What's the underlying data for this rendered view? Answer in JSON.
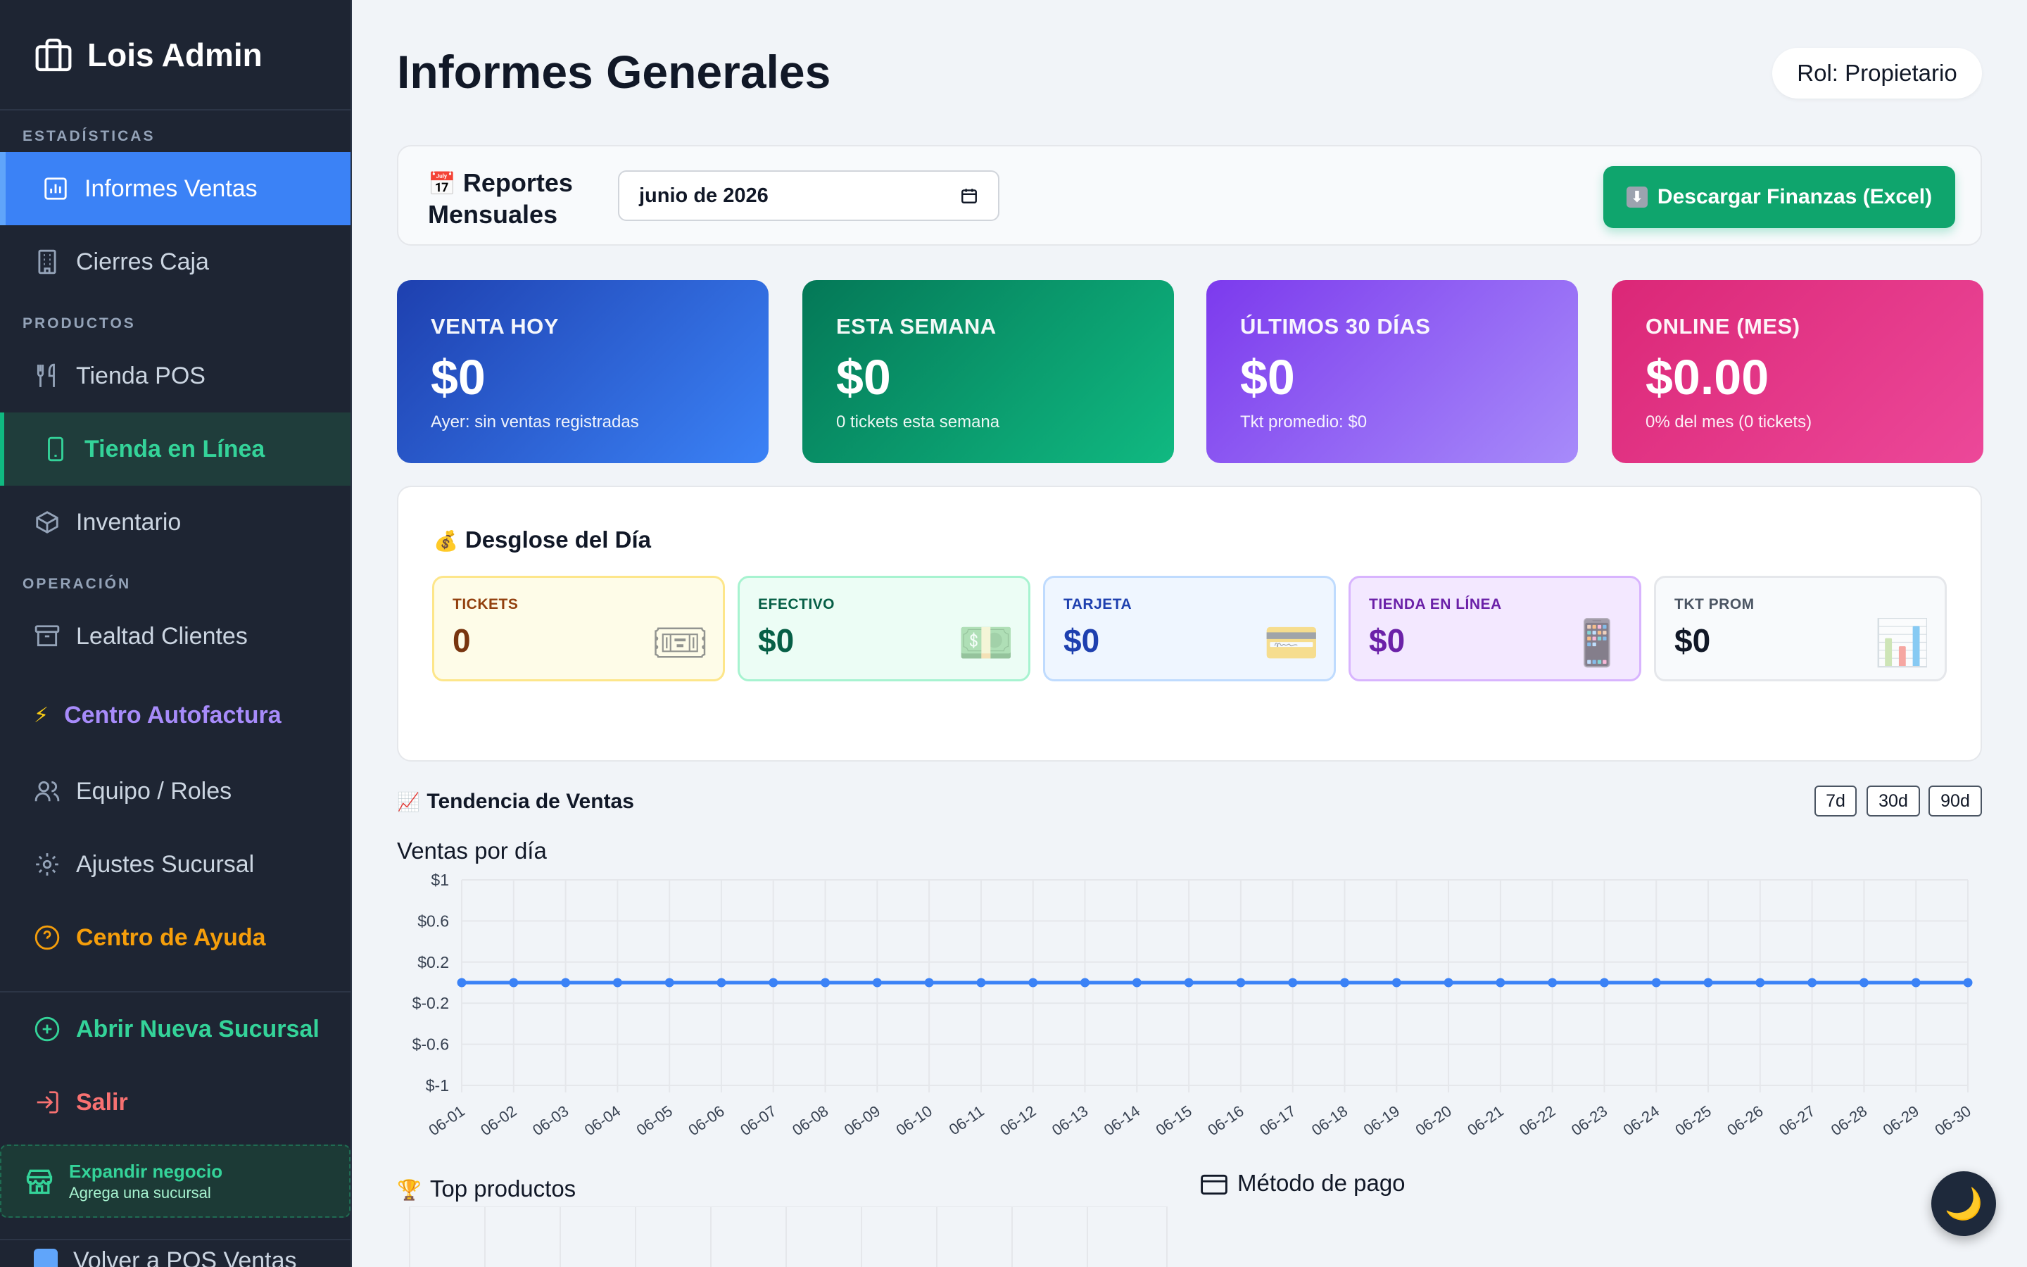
{
  "sidebar": {
    "brand": "Lois Admin",
    "sections": {
      "stats": "ESTADÍSTICAS",
      "products": "PRODUCTOS",
      "operation": "OPERACIÓN"
    },
    "items": {
      "informes_ventas": "Informes Ventas",
      "cierres_caja": "Cierres Caja",
      "tienda_pos": "Tienda POS",
      "tienda_linea": "Tienda en Línea",
      "inventario": "Inventario",
      "lealtad": "Lealtad Clientes",
      "autofactura": "Centro Autofactura",
      "equipo": "Equipo / Roles",
      "ajustes": "Ajustes Sucursal",
      "ayuda": "Centro de Ayuda",
      "nueva_sucursal": "Abrir Nueva Sucursal",
      "salir": "Salir",
      "volver_pos": "Volver a POS Ventas"
    },
    "expand": {
      "title": "Expandir negocio",
      "subtitle": "Agrega una sucursal"
    }
  },
  "header": {
    "title": "Informes Generales",
    "role": "Rol: Propietario"
  },
  "reports": {
    "title_line1": "Reportes",
    "title_line2": "Mensuales",
    "month_value": "junio de 2026",
    "download_label": "Descargar Finanzas (Excel)"
  },
  "stats": [
    {
      "label": "VENTA HOY",
      "value": "$0",
      "sub": "Ayer: sin ventas registradas",
      "color_from": "#1e40af",
      "color_to": "#3b82f6"
    },
    {
      "label": "ESTA SEMANA",
      "value": "$0",
      "sub": "0 tickets esta semana",
      "color_from": "#047857",
      "color_to": "#10b981"
    },
    {
      "label": "ÚLTIMOS 30 DÍAS",
      "value": "$0",
      "sub": "Tkt promedio: $0",
      "color_from": "#7c3aed",
      "color_to": "#a78bfa"
    },
    {
      "label": "ONLINE (MES)",
      "value": "$0.00",
      "sub": "0% del mes (0 tickets)",
      "color_from": "#db2777",
      "color_to": "#ec4899"
    }
  ],
  "breakdown": {
    "title": "Desglose del Día",
    "cards": [
      {
        "label": "TICKETS",
        "value": "0",
        "icon": "ticket-icon"
      },
      {
        "label": "EFECTIVO",
        "value": "$0",
        "icon": "cash-icon"
      },
      {
        "label": "TARJETA",
        "value": "$0",
        "icon": "card-icon"
      },
      {
        "label": "TIENDA EN LÍNEA",
        "value": "$0",
        "icon": "phone-icon"
      },
      {
        "label": "TKT PROM",
        "value": "$0",
        "icon": "bar-chart-icon"
      }
    ]
  },
  "trend": {
    "title": "Tendencia de Ventas",
    "ranges": [
      "7d",
      "30d",
      "90d"
    ]
  },
  "chart_data": {
    "type": "line",
    "title": "Ventas por día",
    "xlabel": "",
    "ylabel": "",
    "x": [
      "06-01",
      "06-02",
      "06-03",
      "06-04",
      "06-05",
      "06-06",
      "06-07",
      "06-08",
      "06-09",
      "06-10",
      "06-11",
      "06-12",
      "06-13",
      "06-14",
      "06-15",
      "06-16",
      "06-17",
      "06-18",
      "06-19",
      "06-20",
      "06-21",
      "06-22",
      "06-23",
      "06-24",
      "06-25",
      "06-26",
      "06-27",
      "06-28",
      "06-29",
      "06-30"
    ],
    "values": [
      0,
      0,
      0,
      0,
      0,
      0,
      0,
      0,
      0,
      0,
      0,
      0,
      0,
      0,
      0,
      0,
      0,
      0,
      0,
      0,
      0,
      0,
      0,
      0,
      0,
      0,
      0,
      0,
      0,
      0
    ],
    "yticks": [
      "$1",
      "$0.6",
      "$0.2",
      "$-0.2",
      "$-0.6",
      "$-1"
    ],
    "ylim": [
      -1,
      1
    ],
    "grid": true,
    "color": "#3b82f6"
  },
  "bottom": {
    "top_products": "Top productos",
    "payment_method": "Método de pago"
  }
}
